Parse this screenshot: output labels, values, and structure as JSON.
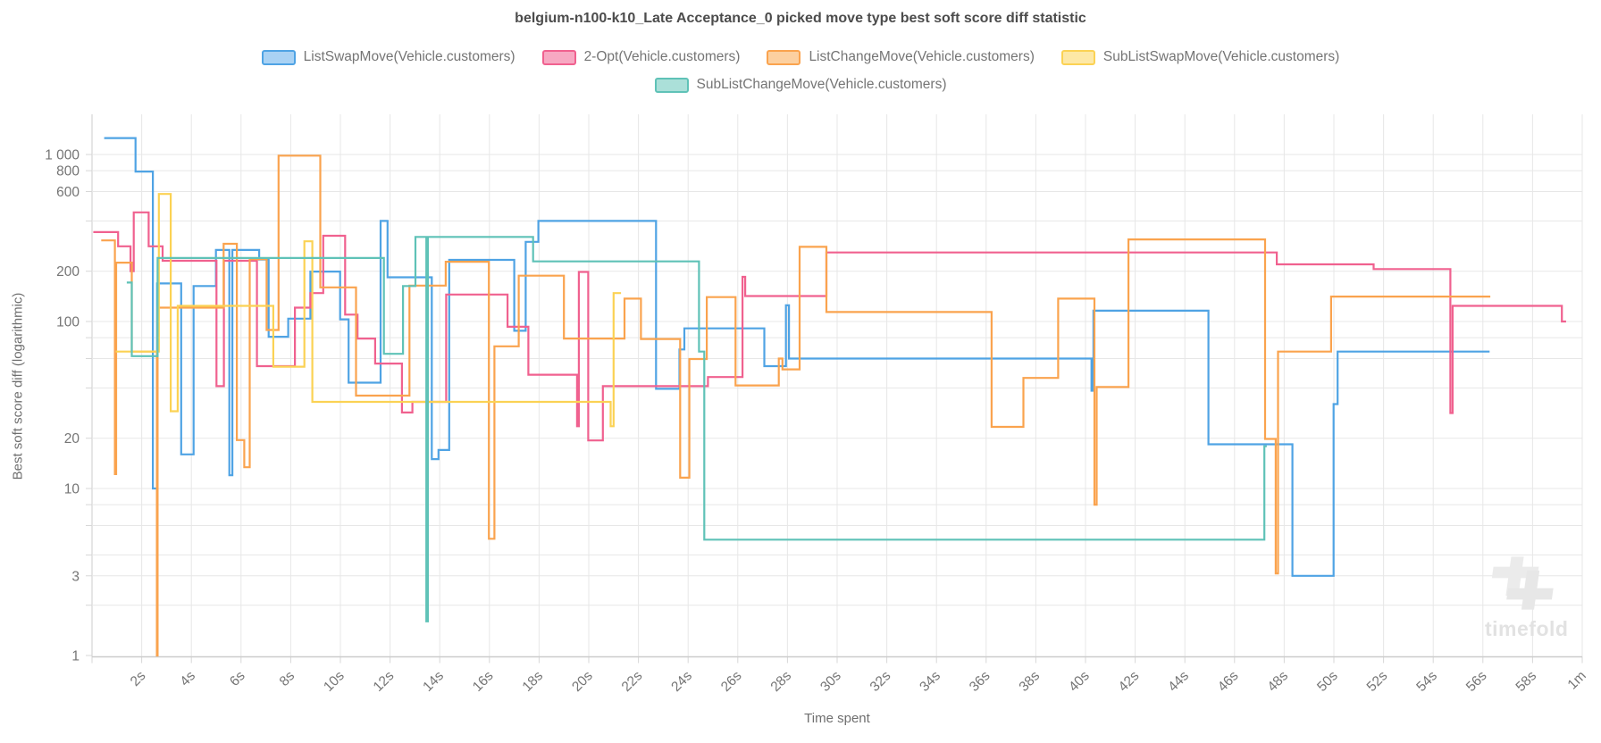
{
  "title": "belgium-n100-k10_Late Acceptance_0 picked move type best soft score diff statistic",
  "y_axis": {
    "label": "Best soft score diff (logarithmic)",
    "ticks": [
      {
        "v": 1000,
        "t": "1 000"
      },
      {
        "v": 800,
        "t": "800"
      },
      {
        "v": 600,
        "t": "600"
      },
      {
        "v": 400,
        "t": ""
      },
      {
        "v": 200,
        "t": "200"
      },
      {
        "v": 100,
        "t": "100"
      },
      {
        "v": 80,
        "t": ""
      },
      {
        "v": 60,
        "t": ""
      },
      {
        "v": 40,
        "t": ""
      },
      {
        "v": 20,
        "t": "20"
      },
      {
        "v": 10,
        "t": "10"
      },
      {
        "v": 8,
        "t": ""
      },
      {
        "v": 6,
        "t": ""
      },
      {
        "v": 4,
        "t": ""
      },
      {
        "v": 3,
        "t": "3"
      },
      {
        "v": 2,
        "t": ""
      },
      {
        "v": 1,
        "t": "1"
      }
    ]
  },
  "x_axis": {
    "label": "Time spent",
    "max_seconds": 60,
    "tick_step": 2,
    "last_tick_label": "1m"
  },
  "watermark": "timefold",
  "chart_data": {
    "type": "line",
    "step": "after",
    "x_unit": "seconds",
    "y_scale": "logarithmic",
    "series": [
      {
        "name": "ListSwapMove(Vehicle.customers)",
        "color": "#4FA3E4",
        "legend_fill": "#A9D2F4",
        "end": 56.27,
        "points": [
          [
            0.49,
            1255
          ],
          [
            1.75,
            790
          ],
          [
            2.45,
            10
          ],
          [
            2.62,
            169
          ],
          [
            3.59,
            16
          ],
          [
            4.09,
            163
          ],
          [
            4.99,
            268
          ],
          [
            5.53,
            12
          ],
          [
            5.65,
            268
          ],
          [
            6.73,
            235
          ],
          [
            7.11,
            81
          ],
          [
            7.9,
            104
          ],
          [
            8.79,
            199
          ],
          [
            9.99,
            103
          ],
          [
            10.33,
            43
          ],
          [
            11.62,
            400
          ],
          [
            11.9,
            184
          ],
          [
            13.68,
            15
          ],
          [
            13.95,
            17
          ],
          [
            14.38,
            234
          ],
          [
            17.0,
            88
          ],
          [
            17.46,
            300
          ],
          [
            17.97,
            400
          ],
          [
            22.71,
            39.5
          ],
          [
            23.65,
            68
          ],
          [
            23.85,
            91
          ],
          [
            27.07,
            54
          ],
          [
            27.94,
            125
          ],
          [
            28.06,
            60
          ],
          [
            40.24,
            38.5
          ],
          [
            40.32,
            116
          ],
          [
            44.95,
            18.4
          ],
          [
            48.33,
            3
          ],
          [
            49.99,
            32
          ],
          [
            50.15,
            66
          ]
        ]
      },
      {
        "name": "2-Opt(Vehicle.customers)",
        "color": "#F0618F",
        "legend_fill": "#F7A8C2",
        "end": 59.35,
        "points": [
          [
            0.05,
            343
          ],
          [
            1.05,
            282
          ],
          [
            1.55,
            200
          ],
          [
            1.68,
            450
          ],
          [
            2.28,
            282
          ],
          [
            2.84,
            231
          ],
          [
            5.01,
            41
          ],
          [
            5.31,
            231
          ],
          [
            6.64,
            54
          ],
          [
            8.17,
            121
          ],
          [
            8.79,
            148
          ],
          [
            9.31,
            326
          ],
          [
            10.19,
            110
          ],
          [
            10.69,
            79
          ],
          [
            11.4,
            56
          ],
          [
            12.48,
            28.5
          ],
          [
            12.9,
            33
          ],
          [
            14.26,
            145
          ],
          [
            16.73,
            93
          ],
          [
            17.57,
            48
          ],
          [
            19.53,
            23.6
          ],
          [
            19.6,
            198
          ],
          [
            19.98,
            19.4
          ],
          [
            20.57,
            41
          ],
          [
            24.8,
            46.5
          ],
          [
            26.19,
            185
          ],
          [
            26.3,
            142
          ],
          [
            29.57,
            259
          ],
          [
            47.7,
            220
          ],
          [
            51.6,
            206
          ],
          [
            54.69,
            28.3
          ],
          [
            54.78,
            124
          ],
          [
            59.18,
            100
          ]
        ]
      },
      {
        "name": "ListChangeMove(Vehicle.customers)",
        "color": "#FAA34E",
        "legend_fill": "#FCD0A0",
        "end": 56.3,
        "points": [
          [
            0.37,
            306
          ],
          [
            0.92,
            12.2
          ],
          [
            0.97,
            225
          ],
          [
            1.6,
            66
          ],
          [
            2.61,
            1
          ],
          [
            2.64,
            121
          ],
          [
            5.3,
            292
          ],
          [
            5.83,
            19.5
          ],
          [
            6.13,
            13.4
          ],
          [
            6.35,
            236
          ],
          [
            7.03,
            89
          ],
          [
            7.51,
            984
          ],
          [
            9.19,
            160
          ],
          [
            10.63,
            36
          ],
          [
            12.78,
            164
          ],
          [
            14.24,
            228
          ],
          [
            15.98,
            5
          ],
          [
            16.2,
            71
          ],
          [
            17.18,
            188
          ],
          [
            19.0,
            79
          ],
          [
            21.44,
            137
          ],
          [
            22.1,
            78.6
          ],
          [
            23.68,
            11.6
          ],
          [
            24.05,
            59.6
          ],
          [
            24.75,
            140
          ],
          [
            25.91,
            41.4
          ],
          [
            27.65,
            60
          ],
          [
            27.8,
            51.7
          ],
          [
            28.49,
            280
          ],
          [
            29.57,
            114
          ],
          [
            36.22,
            23.4
          ],
          [
            37.5,
            45.9
          ],
          [
            38.9,
            137
          ],
          [
            40.36,
            8
          ],
          [
            40.45,
            40.5
          ],
          [
            41.73,
            310
          ],
          [
            47.23,
            19.8
          ],
          [
            47.66,
            3.1
          ],
          [
            47.75,
            66
          ],
          [
            49.89,
            141
          ]
        ]
      },
      {
        "name": "SubListSwapMove(Vehicle.customers)",
        "color": "#FBD254",
        "legend_fill": "#FDE8A6",
        "end": 21.3,
        "points": [
          [
            0.95,
            66
          ],
          [
            2.69,
            580
          ],
          [
            3.17,
            29
          ],
          [
            3.45,
            124
          ],
          [
            7.3,
            53.6
          ],
          [
            8.55,
            302
          ],
          [
            8.87,
            33
          ],
          [
            20.88,
            23.6
          ],
          [
            21.0,
            148
          ]
        ]
      },
      {
        "name": "SubListChangeMove(Vehicle.customers)",
        "color": "#5FC2B7",
        "legend_fill": "#ABE0D9",
        "end": 47.3,
        "points": [
          [
            1.4,
            171
          ],
          [
            1.6,
            62
          ],
          [
            2.64,
            240
          ],
          [
            11.75,
            64
          ],
          [
            12.52,
            163
          ],
          [
            13.02,
            321
          ],
          [
            13.46,
            1.6
          ],
          [
            13.52,
            321
          ],
          [
            17.76,
            229
          ],
          [
            24.44,
            66
          ],
          [
            24.65,
            4.94
          ],
          [
            47.2,
            17.9
          ]
        ]
      }
    ],
    "legend_rows": [
      [
        0,
        1,
        2,
        3
      ],
      [
        4
      ]
    ]
  }
}
